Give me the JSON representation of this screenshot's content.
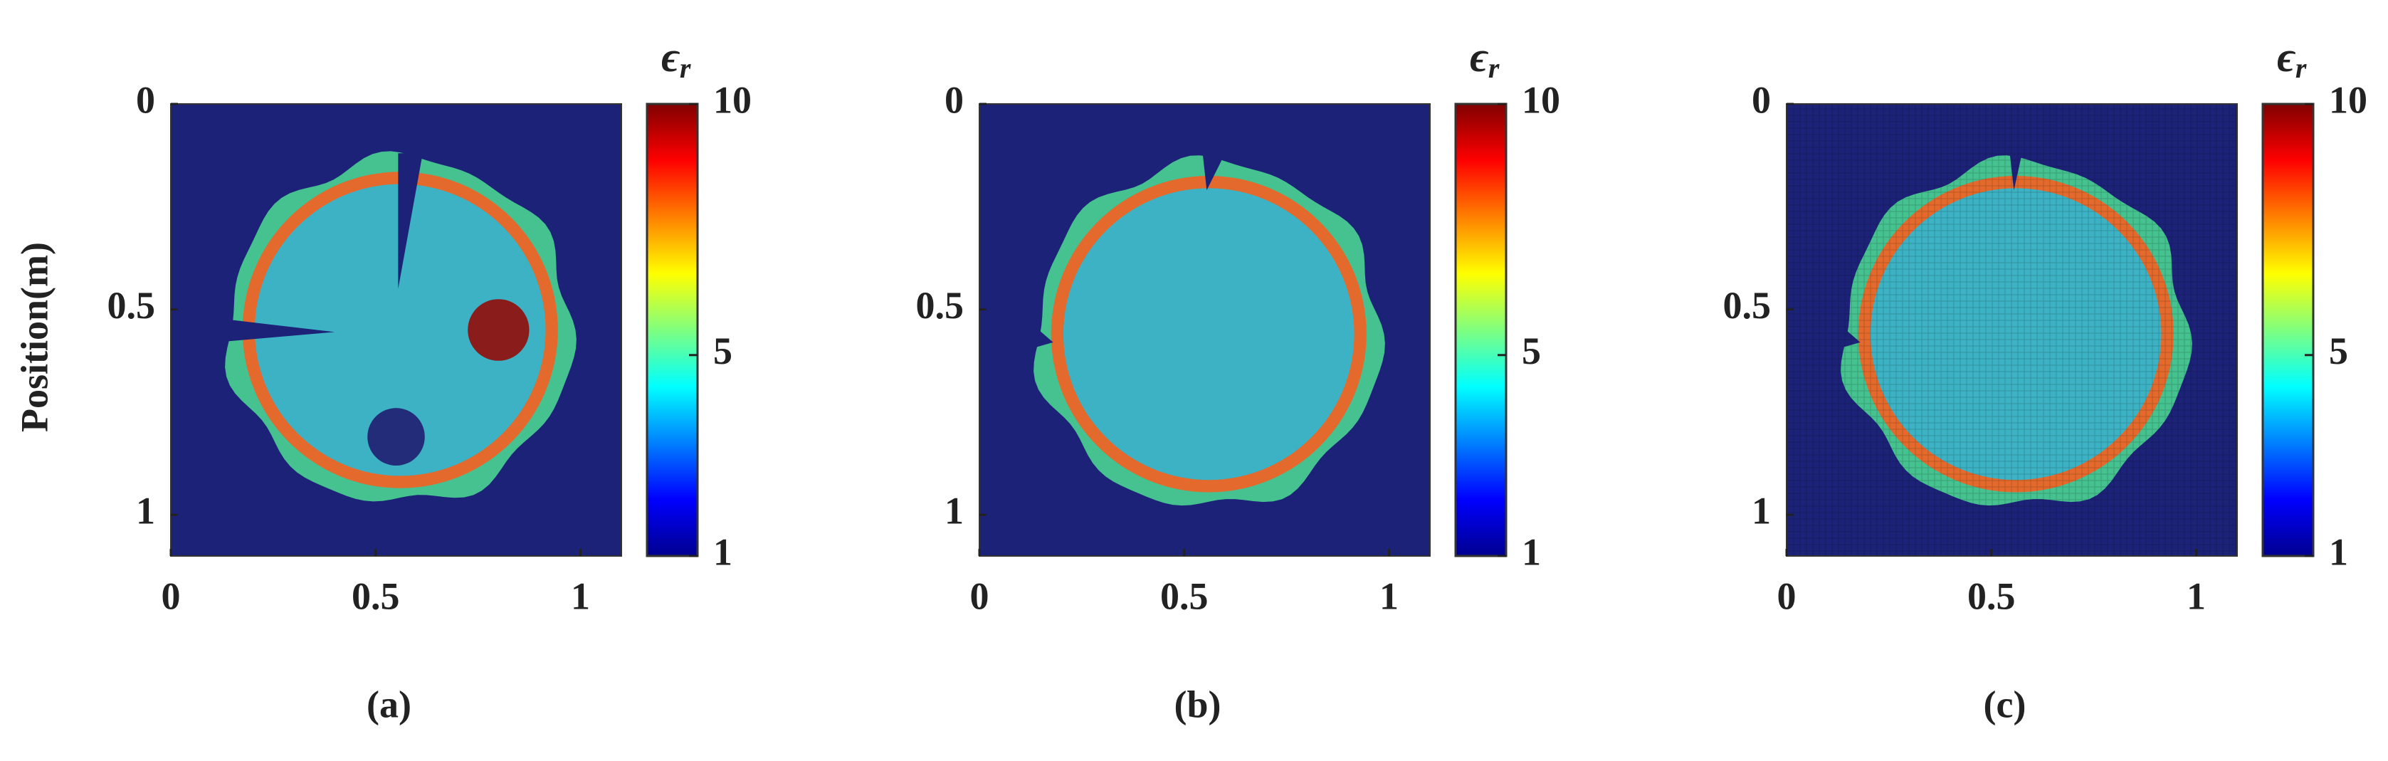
{
  "chart_data": [
    {
      "type": "heatmap",
      "panel_label": "(a)",
      "y_label": "Position(m)",
      "colorbar_title": {
        "symbol": "ϵ",
        "subscript": "r"
      },
      "xlim": [
        0,
        1.1
      ],
      "xticks": [
        0,
        0.5,
        1
      ],
      "ylim": [
        0,
        1.1
      ],
      "yticks": [
        0,
        0.5,
        1
      ],
      "y_reversed": true,
      "clim": [
        1,
        10
      ],
      "cticks": [
        1,
        5,
        10
      ],
      "colormap": "jet"
    },
    {
      "type": "heatmap",
      "panel_label": "(b)",
      "colorbar_title": {
        "symbol": "ϵ",
        "subscript": "r"
      },
      "xlim": [
        0,
        1.1
      ],
      "xticks": [
        0,
        0.5,
        1
      ],
      "ylim": [
        0,
        1.1
      ],
      "yticks": [
        0,
        0.5,
        1
      ],
      "y_reversed": true,
      "clim": [
        1,
        10
      ],
      "cticks": [
        1,
        5,
        10
      ],
      "colormap": "jet"
    },
    {
      "type": "heatmap",
      "panel_label": "(c)",
      "colorbar_title": {
        "symbol": "ϵ",
        "subscript": "r"
      },
      "xlim": [
        0,
        1.1
      ],
      "xticks": [
        0,
        0.5,
        1
      ],
      "ylim": [
        0,
        1.1
      ],
      "yticks": [
        0,
        0.5,
        1
      ],
      "y_reversed": true,
      "clim": [
        1,
        10
      ],
      "cticks": [
        1,
        5,
        10
      ],
      "colormap": "jet"
    }
  ]
}
